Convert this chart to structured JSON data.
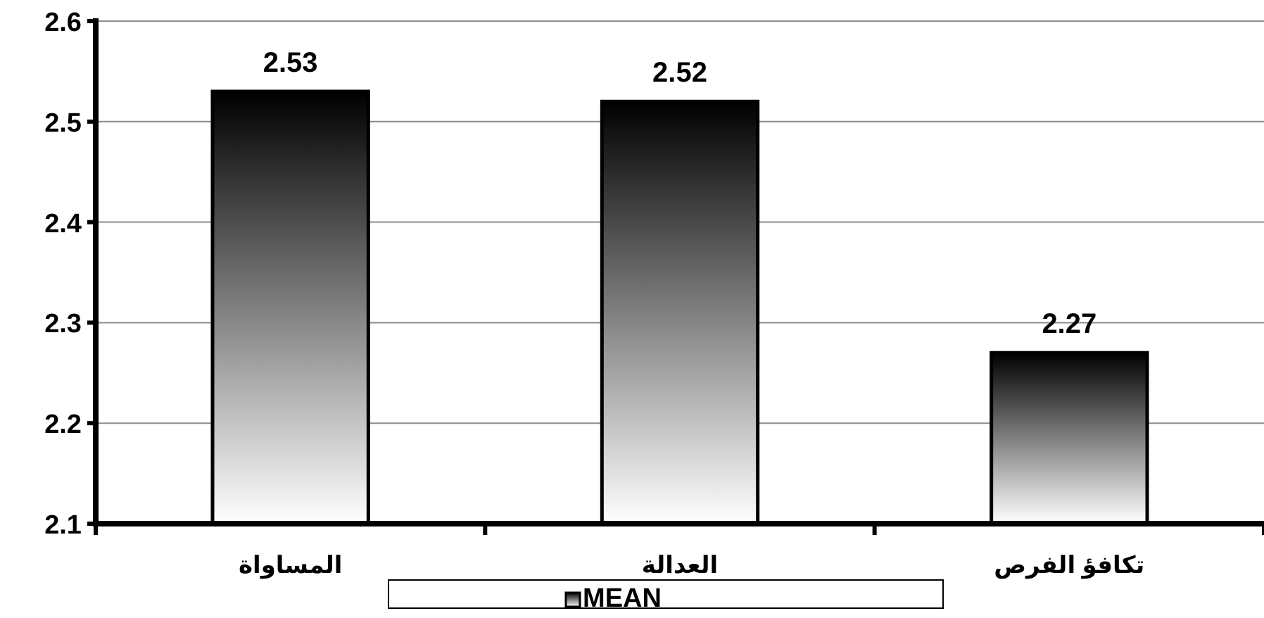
{
  "chart_data": {
    "type": "bar",
    "categories": [
      "المساواة",
      "العدالة",
      "تكافؤ الفرص"
    ],
    "series": [
      {
        "name": "MEAN",
        "color": "#000000",
        "values": [
          2.53,
          2.52,
          2.27
        ]
      }
    ],
    "ylim": [
      2.1,
      2.6
    ],
    "yticks": [
      2.1,
      2.2,
      2.3,
      2.4,
      2.5,
      2.6
    ],
    "grid": "y",
    "legend": "bottom",
    "data_labels": true
  }
}
